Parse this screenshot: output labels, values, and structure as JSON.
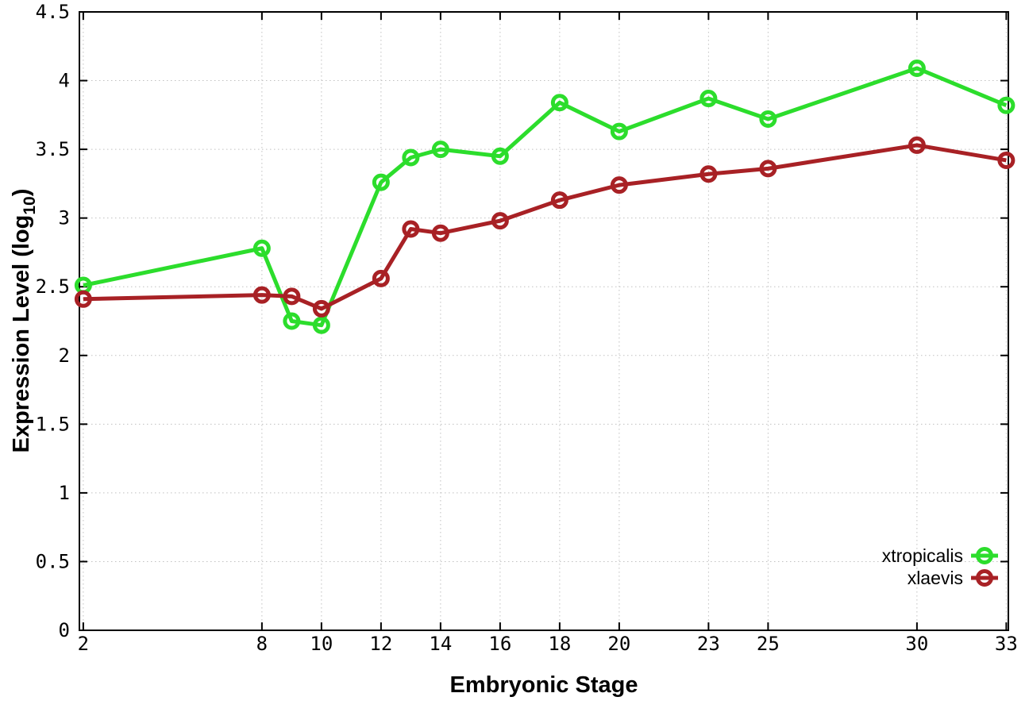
{
  "chart_data": {
    "type": "line",
    "title": "",
    "xlabel": "Embryonic Stage",
    "ylabel": "Expression Level (log10)",
    "ylabel_parts": {
      "main": "Expression Level (log",
      "sub": "10",
      "suffix": ")"
    },
    "x": [
      2,
      8,
      9,
      10,
      12,
      13,
      14,
      16,
      18,
      20,
      23,
      25,
      30,
      33
    ],
    "series": [
      {
        "name": "xtropicalis",
        "color": "#2cdd2c",
        "values": [
          2.51,
          2.78,
          2.25,
          2.22,
          3.26,
          3.44,
          3.5,
          3.45,
          3.84,
          3.63,
          3.87,
          3.72,
          4.09,
          3.82
        ]
      },
      {
        "name": "xlaevis",
        "color": "#a82125",
        "values": [
          2.41,
          2.44,
          2.43,
          2.34,
          2.56,
          2.92,
          2.89,
          2.98,
          3.13,
          3.24,
          3.32,
          3.36,
          3.53,
          3.42
        ]
      }
    ],
    "xticks": {
      "values": [
        2,
        8,
        10,
        12,
        14,
        16,
        18,
        20,
        23,
        25,
        30,
        33
      ],
      "labels": [
        "2",
        "8",
        "10",
        "12",
        "14",
        "16",
        "18",
        "20",
        "23",
        "25",
        "30",
        "33"
      ]
    },
    "yticks": {
      "values": [
        0,
        0.5,
        1,
        1.5,
        2,
        2.5,
        3,
        3.5,
        4,
        4.5
      ],
      "labels": [
        "0",
        "0.5",
        "1",
        "1.5",
        "2",
        "2.5",
        "3",
        "3.5",
        "4",
        "4.5"
      ]
    },
    "xlim": [
      1.87,
      33.07
    ],
    "ylim": [
      0,
      4.5
    ],
    "grid": true,
    "grid_style": "dotted",
    "grid_color": "#c0c0c0",
    "border_color": "#000000",
    "background_color": "#ffffff",
    "marker": "open-circle",
    "legend_position": "bottom-right-inside"
  }
}
